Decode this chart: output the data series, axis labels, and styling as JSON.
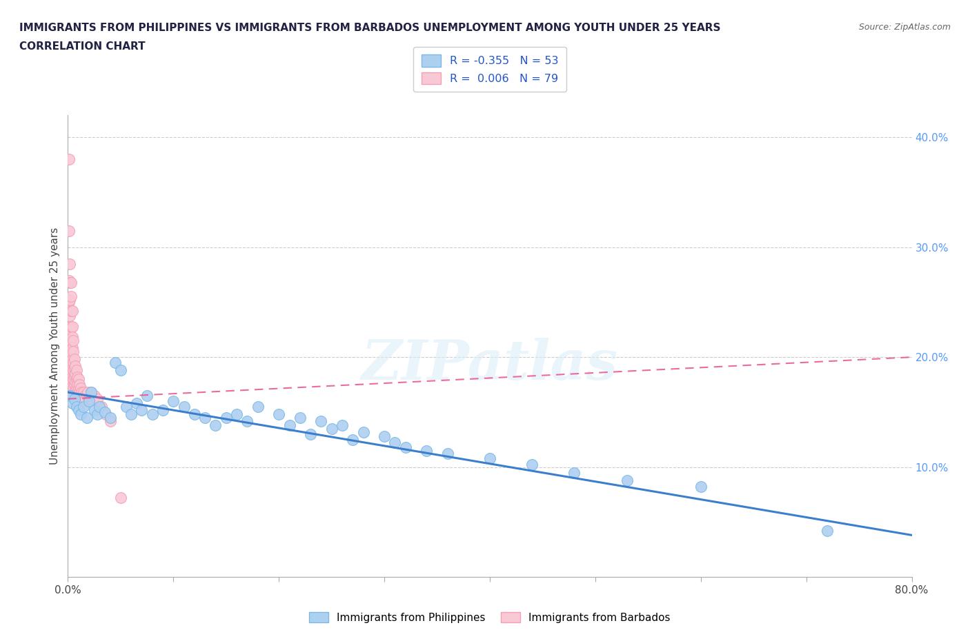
{
  "title_line1": "IMMIGRANTS FROM PHILIPPINES VS IMMIGRANTS FROM BARBADOS UNEMPLOYMENT AMONG YOUTH UNDER 25 YEARS",
  "title_line2": "CORRELATION CHART",
  "source_text": "Source: ZipAtlas.com",
  "ylabel": "Unemployment Among Youth under 25 years",
  "xlim": [
    0.0,
    0.8
  ],
  "ylim": [
    0.0,
    0.42
  ],
  "xticks": [
    0.0,
    0.1,
    0.2,
    0.3,
    0.4,
    0.5,
    0.6,
    0.7,
    0.8
  ],
  "xticklabels": [
    "0.0%",
    "",
    "",
    "",
    "",
    "",
    "",
    "",
    "80.0%"
  ],
  "yticks_right": [
    0.1,
    0.2,
    0.3,
    0.4
  ],
  "ytick_right_labels": [
    "10.0%",
    "20.0%",
    "30.0%",
    "40.0%"
  ],
  "philippines_R": -0.355,
  "philippines_N": 53,
  "barbados_R": 0.006,
  "barbados_N": 79,
  "philippines_color": "#7ab8e8",
  "philippines_fill": "#aed0f0",
  "barbados_color": "#f4a0b5",
  "barbados_fill": "#f9c8d5",
  "trend_philippines_color": "#3b7fcc",
  "trend_barbados_color": "#e85090",
  "watermark": "ZIPatlas",
  "legend_label_philippines": "Immigrants from Philippines",
  "legend_label_barbados": "Immigrants from Barbados",
  "philippines_x": [
    0.002,
    0.004,
    0.006,
    0.008,
    0.01,
    0.012,
    0.015,
    0.018,
    0.02,
    0.022,
    0.025,
    0.028,
    0.03,
    0.035,
    0.04,
    0.045,
    0.05,
    0.055,
    0.06,
    0.065,
    0.07,
    0.075,
    0.08,
    0.09,
    0.1,
    0.11,
    0.12,
    0.13,
    0.14,
    0.15,
    0.16,
    0.17,
    0.18,
    0.2,
    0.21,
    0.22,
    0.23,
    0.24,
    0.25,
    0.26,
    0.27,
    0.28,
    0.3,
    0.31,
    0.32,
    0.34,
    0.36,
    0.4,
    0.44,
    0.48,
    0.53,
    0.6,
    0.72
  ],
  "philippines_y": [
    0.165,
    0.158,
    0.162,
    0.155,
    0.152,
    0.148,
    0.155,
    0.145,
    0.16,
    0.168,
    0.152,
    0.148,
    0.155,
    0.15,
    0.145,
    0.195,
    0.188,
    0.155,
    0.148,
    0.158,
    0.152,
    0.165,
    0.148,
    0.152,
    0.16,
    0.155,
    0.148,
    0.145,
    0.138,
    0.145,
    0.148,
    0.142,
    0.155,
    0.148,
    0.138,
    0.145,
    0.13,
    0.142,
    0.135,
    0.138,
    0.125,
    0.132,
    0.128,
    0.122,
    0.118,
    0.115,
    0.112,
    0.108,
    0.102,
    0.095,
    0.088,
    0.082,
    0.042
  ],
  "barbados_x": [
    0.001,
    0.001,
    0.001,
    0.001,
    0.002,
    0.002,
    0.002,
    0.002,
    0.002,
    0.002,
    0.002,
    0.002,
    0.003,
    0.003,
    0.003,
    0.003,
    0.003,
    0.003,
    0.003,
    0.003,
    0.003,
    0.003,
    0.004,
    0.004,
    0.004,
    0.004,
    0.004,
    0.004,
    0.004,
    0.004,
    0.004,
    0.005,
    0.005,
    0.005,
    0.005,
    0.005,
    0.005,
    0.005,
    0.006,
    0.006,
    0.006,
    0.006,
    0.006,
    0.007,
    0.007,
    0.007,
    0.007,
    0.008,
    0.008,
    0.008,
    0.008,
    0.009,
    0.009,
    0.009,
    0.01,
    0.01,
    0.01,
    0.011,
    0.011,
    0.012,
    0.012,
    0.013,
    0.013,
    0.014,
    0.014,
    0.015,
    0.015,
    0.016,
    0.017,
    0.018,
    0.019,
    0.02,
    0.022,
    0.025,
    0.028,
    0.032,
    0.036,
    0.04,
    0.05
  ],
  "barbados_y": [
    0.38,
    0.315,
    0.27,
    0.25,
    0.285,
    0.268,
    0.252,
    0.238,
    0.225,
    0.215,
    0.205,
    0.195,
    0.268,
    0.255,
    0.242,
    0.228,
    0.215,
    0.205,
    0.195,
    0.186,
    0.178,
    0.172,
    0.242,
    0.228,
    0.218,
    0.208,
    0.198,
    0.19,
    0.182,
    0.174,
    0.166,
    0.215,
    0.205,
    0.196,
    0.188,
    0.18,
    0.172,
    0.165,
    0.198,
    0.19,
    0.182,
    0.175,
    0.168,
    0.192,
    0.185,
    0.178,
    0.17,
    0.188,
    0.18,
    0.172,
    0.165,
    0.182,
    0.175,
    0.168,
    0.18,
    0.172,
    0.165,
    0.175,
    0.168,
    0.172,
    0.165,
    0.168,
    0.16,
    0.165,
    0.158,
    0.168,
    0.16,
    0.165,
    0.162,
    0.165,
    0.168,
    0.162,
    0.168,
    0.165,
    0.162,
    0.155,
    0.148,
    0.142,
    0.072
  ],
  "phil_trend_x0": 0.0,
  "phil_trend_y0": 0.168,
  "phil_trend_x1": 0.8,
  "phil_trend_y1": 0.038,
  "barb_trend_x0": 0.0,
  "barb_trend_y0": 0.162,
  "barb_trend_x1": 0.8,
  "barb_trend_y1": 0.2
}
